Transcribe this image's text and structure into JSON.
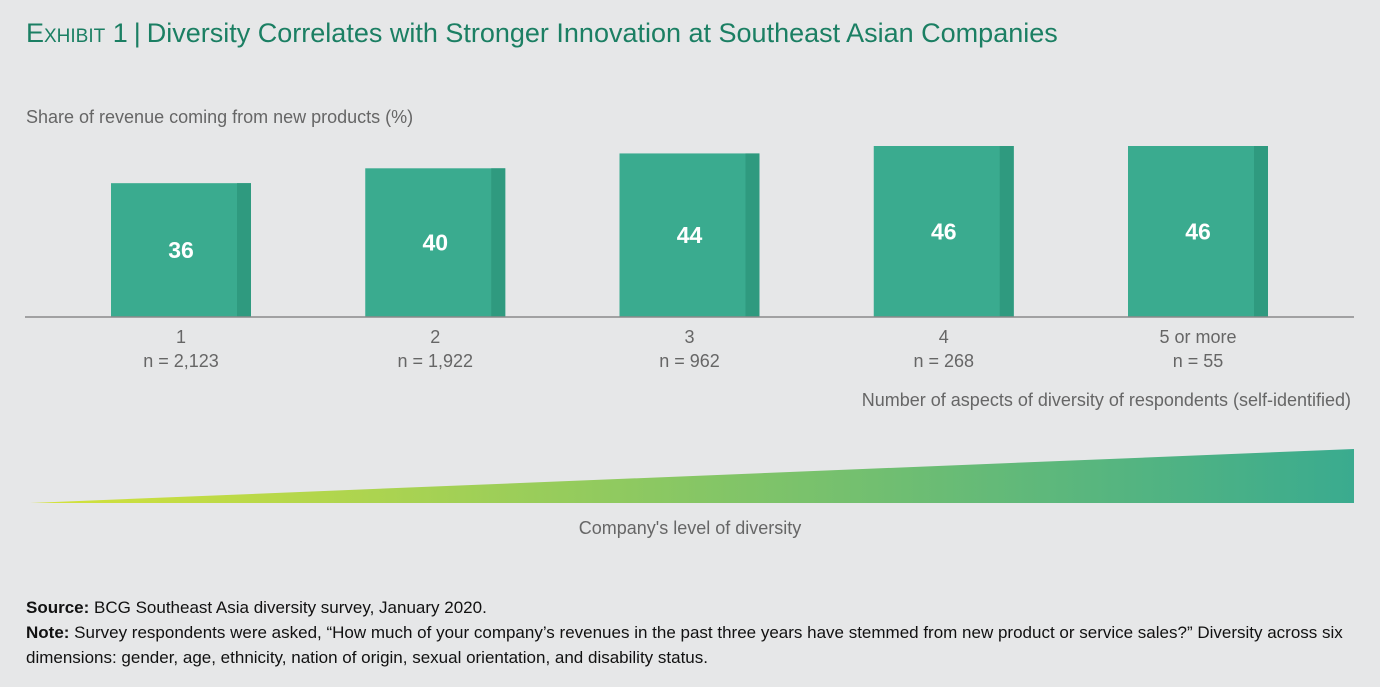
{
  "header": {
    "exhibit": "Exhibit 1",
    "separator": "|",
    "title": "Diversity Correlates with Stronger Innovation at Southeast Asian Companies"
  },
  "chart_data": {
    "type": "bar",
    "ylabel": "Share of revenue coming from new products (%)",
    "xlabel": "Number of aspects of diversity of respondents (self-identified)",
    "categories": [
      "1",
      "2",
      "3",
      "4",
      "5 or more"
    ],
    "sample_sizes": [
      "n = 2,123",
      "n = 1,922",
      "n = 962",
      "n = 268",
      "n = 55"
    ],
    "values": [
      36,
      40,
      44,
      46,
      46
    ],
    "ylim": [
      0,
      46
    ],
    "bar_color": "#3aab8f",
    "bar_shade_color": "#2f9a7f",
    "grid": false,
    "legend": "none"
  },
  "diversity_scale": {
    "label": "Company's level of diversity",
    "color_start": "#d4e23a",
    "color_end": "#3aab8f"
  },
  "footnotes": {
    "source_label": "Source:",
    "source_text": " BCG Southeast Asia diversity survey, January 2020.",
    "note_label": "Note:",
    "note_text": " Survey respondents were asked, “How much of your company’s revenues in the past three years have stemmed from new product or service sales?” Diversity across six dimensions: gender, age, ethnicity, nation of origin, sexual orientation, and disability status."
  }
}
